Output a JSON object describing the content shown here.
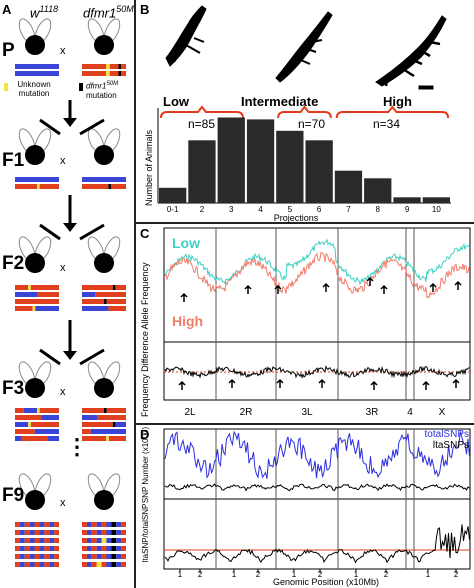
{
  "panel_a": {
    "label": "A",
    "parent1": "w",
    "parent1_sup": "1118",
    "parent2": "dfmr1",
    "parent2_sup": "50M",
    "cross_symbol": "x",
    "legend_unknown": "Unknown mutation",
    "legend_dfmr1": "dfmr1",
    "legend_dfmr1_sup": "50M",
    "legend_dfmr1_tail": "mutation",
    "generations": [
      "P",
      "F1",
      "F2",
      "F3",
      "F9"
    ],
    "ellipsis": "⋮",
    "colors": {
      "blue": "#3a45d8",
      "red": "#e0401d",
      "yellow": "#f2e43a",
      "black": "#000000"
    }
  },
  "panel_b": {
    "label": "B",
    "groups": [
      {
        "name": "Low",
        "n_label": "n=85"
      },
      {
        "name": "Intermediate",
        "n_label": "n=70"
      },
      {
        "name": "High",
        "n_label": "n=34"
      }
    ],
    "bracket_color": "#e23c1c",
    "chart_data": {
      "type": "bar",
      "categories": [
        "0-1",
        "2",
        "3",
        "4",
        "5",
        "6",
        "7",
        "8",
        "9",
        "10"
      ],
      "values": [
        8,
        33,
        45,
        44,
        38,
        33,
        17,
        13,
        3,
        3
      ],
      "xlabel": "Projections",
      "ylabel": "Number of Animals",
      "ylim": [
        0,
        50
      ]
    }
  },
  "panel_c": {
    "label": "C",
    "low_label": "Low",
    "high_label": "High",
    "low_color": "#3ed1c3",
    "high_color": "#f27d6b",
    "top_ylabel": "Allele Frequency",
    "bottom_ylabel": "Frequency Difference",
    "chromosomes": [
      "2L",
      "2R",
      "3L",
      "3R",
      "4",
      "X"
    ]
  },
  "panel_d": {
    "label": "D",
    "legend_total": "totalSNPs",
    "legend_lta": "ltaSNPs",
    "total_color": "#2c2ee0",
    "lta_color": "#000000",
    "top_ylabel": "SNP Number (x1000)",
    "bottom_ylabel": "ltaSNP/totalSNP",
    "xlabel": "Genomic Position (x10Mb)",
    "ticks": [
      "1",
      "2",
      "1",
      "2",
      "1",
      "2",
      "1",
      "2",
      "1",
      "2"
    ]
  }
}
